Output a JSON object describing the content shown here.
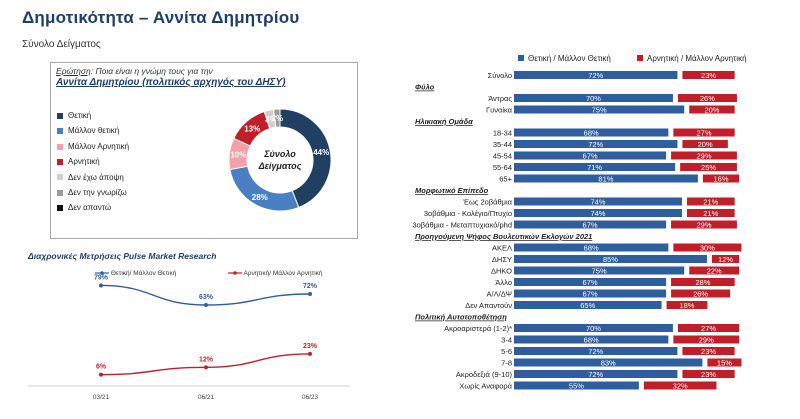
{
  "header": {
    "title": "Δημοτικότητα – Αννίτα Δημητρίου",
    "subtitle": "Σύνολο Δείγματος"
  },
  "question": {
    "label": "Ερώτηση",
    "text": ": Ποια είναι η γνώμη τους για την",
    "subject": "Αννίτα Δημητρίου (πολιτικός αρχηγός του ΔΗΣΥ)"
  },
  "chart_data": [
    {
      "type": "pie",
      "name": "donut",
      "center_label_1": "Σύνολο",
      "center_label_2": "Δείγματος",
      "slices": [
        {
          "label": "Θετική",
          "value": 44,
          "color": "#203f62"
        },
        {
          "label": "Μάλλον θετική",
          "value": 28,
          "color": "#4a7fc4"
        },
        {
          "label": "Μάλλον Αρνητική",
          "value": 10,
          "color": "#f3a1a8"
        },
        {
          "label": "Αρνητική",
          "value": 13,
          "color": "#c01f2a"
        },
        {
          "label": "Δεν έχω άποψη",
          "value": 3,
          "color": "#cfcfcf"
        },
        {
          "label": "Δεν την γνωρίζω",
          "value": 2,
          "color": "#9a9a9a"
        },
        {
          "label": "Δεν απαντώ",
          "value": 0,
          "color": "#111111"
        }
      ],
      "data_labels": [
        "44%",
        "28%",
        "10%",
        "13%",
        "3%",
        "2%"
      ]
    },
    {
      "type": "line",
      "name": "trend",
      "title": "Διαχρονικές Μετρήσεις Pulse Market Research",
      "categories": [
        "03/21",
        "06/21",
        "06/23"
      ],
      "series": [
        {
          "name": "Θετική/ Μάλλον Θετική",
          "values": [
            79,
            63,
            72
          ],
          "labels": [
            "79%",
            "63%",
            "72%"
          ],
          "color": "#2f5e9e"
        },
        {
          "name": "Αρνητική/ Μάλλον Αρνητική",
          "values": [
            6,
            12,
            23
          ],
          "labels": [
            "6%",
            "12%",
            "23%"
          ],
          "color": "#c01f2a"
        }
      ],
      "ylim": [
        0,
        90
      ]
    },
    {
      "type": "bar",
      "name": "demographics",
      "legend_positive": "Θετική / Μάλλον Θετική",
      "legend_negative": "Αρνητική / Μάλλον Αρνητική",
      "positive_color": "#2f5e9e",
      "negative_color": "#c01f2a",
      "rows": [
        {
          "kind": "row",
          "label": "Σύνολο",
          "pos": 72,
          "neg": 23,
          "pos_label": "72%",
          "neg_label": "23%"
        },
        {
          "kind": "header",
          "label": "Φύλο"
        },
        {
          "kind": "row",
          "label": "Άντρας",
          "pos": 70,
          "neg": 26,
          "pos_label": "70%",
          "neg_label": "26%"
        },
        {
          "kind": "row",
          "label": "Γυναίκα",
          "pos": 75,
          "neg": 20,
          "pos_label": "75%",
          "neg_label": "20%"
        },
        {
          "kind": "header",
          "label": "Ηλικιακή Ομάδα"
        },
        {
          "kind": "row",
          "label": "18-34",
          "pos": 68,
          "neg": 27,
          "pos_label": "68%",
          "neg_label": "27%"
        },
        {
          "kind": "row",
          "label": "35-44",
          "pos": 72,
          "neg": 20,
          "pos_label": "72%",
          "neg_label": "20%"
        },
        {
          "kind": "row",
          "label": "45-54",
          "pos": 67,
          "neg": 29,
          "pos_label": "67%",
          "neg_label": "29%"
        },
        {
          "kind": "row",
          "label": "55-64",
          "pos": 71,
          "neg": 25,
          "pos_label": "71%",
          "neg_label": "25%"
        },
        {
          "kind": "row",
          "label": "65+",
          "pos": 81,
          "neg": 16,
          "pos_label": "81%",
          "neg_label": "16%"
        },
        {
          "kind": "header",
          "label": "Μορφωτικό Επίπεδο"
        },
        {
          "kind": "row",
          "label": "Έως 2οβάθμια",
          "pos": 74,
          "neg": 21,
          "pos_label": "74%",
          "neg_label": "21%"
        },
        {
          "kind": "row",
          "label": "3οβάθμια - Κολέγιο/Πτυχίο",
          "pos": 74,
          "neg": 21,
          "pos_label": "74%",
          "neg_label": "21%"
        },
        {
          "kind": "row",
          "label": "3οβάθμια - Μεταπτυχιακό/phd",
          "pos": 67,
          "neg": 29,
          "pos_label": "67%",
          "neg_label": "29%"
        },
        {
          "kind": "header",
          "label": "Προηγούμενη Ψήφος Βουλευτικών Εκλογών 2021"
        },
        {
          "kind": "row",
          "label": "ΑΚΕΛ",
          "pos": 68,
          "neg": 30,
          "pos_label": "68%",
          "neg_label": "30%"
        },
        {
          "kind": "row",
          "label": "ΔΗΣΥ",
          "pos": 85,
          "neg": 12,
          "pos_label": "85%",
          "neg_label": "12%"
        },
        {
          "kind": "row",
          "label": "ΔΗΚΟ",
          "pos": 75,
          "neg": 22,
          "pos_label": "75%",
          "neg_label": "22%"
        },
        {
          "kind": "row",
          "label": "Άλλο",
          "pos": 67,
          "neg": 28,
          "pos_label": "67%",
          "neg_label": "28%"
        },
        {
          "kind": "row",
          "label": "Α/Λ/ΔΨ",
          "pos": 67,
          "neg": 26,
          "pos_label": "67%",
          "neg_label": "26%"
        },
        {
          "kind": "row",
          "label": "Δεν Απαντούν",
          "pos": 65,
          "neg": 18,
          "pos_label": "65%",
          "neg_label": "18%"
        },
        {
          "kind": "header",
          "label": "Πολιτική Αυτοτοποθέτηση"
        },
        {
          "kind": "row",
          "label": "Ακροαριστερά (1-2)*",
          "pos": 70,
          "neg": 27,
          "pos_label": "70%",
          "neg_label": "27%"
        },
        {
          "kind": "row",
          "label": "3-4",
          "pos": 68,
          "neg": 29,
          "pos_label": "68%",
          "neg_label": "29%"
        },
        {
          "kind": "row",
          "label": "5-6",
          "pos": 72,
          "neg": 23,
          "pos_label": "72%",
          "neg_label": "23%"
        },
        {
          "kind": "row",
          "label": "7-8",
          "pos": 83,
          "neg": 15,
          "pos_label": "83%",
          "neg_label": "15%"
        },
        {
          "kind": "row",
          "label": "Ακροδεξιά (9-10)",
          "pos": 72,
          "neg": 23,
          "pos_label": "72%",
          "neg_label": "23%"
        },
        {
          "kind": "row",
          "label": "Χωρίς Αναφορά",
          "pos": 55,
          "neg": 32,
          "pos_label": "55%",
          "neg_label": "32%"
        }
      ]
    }
  ]
}
